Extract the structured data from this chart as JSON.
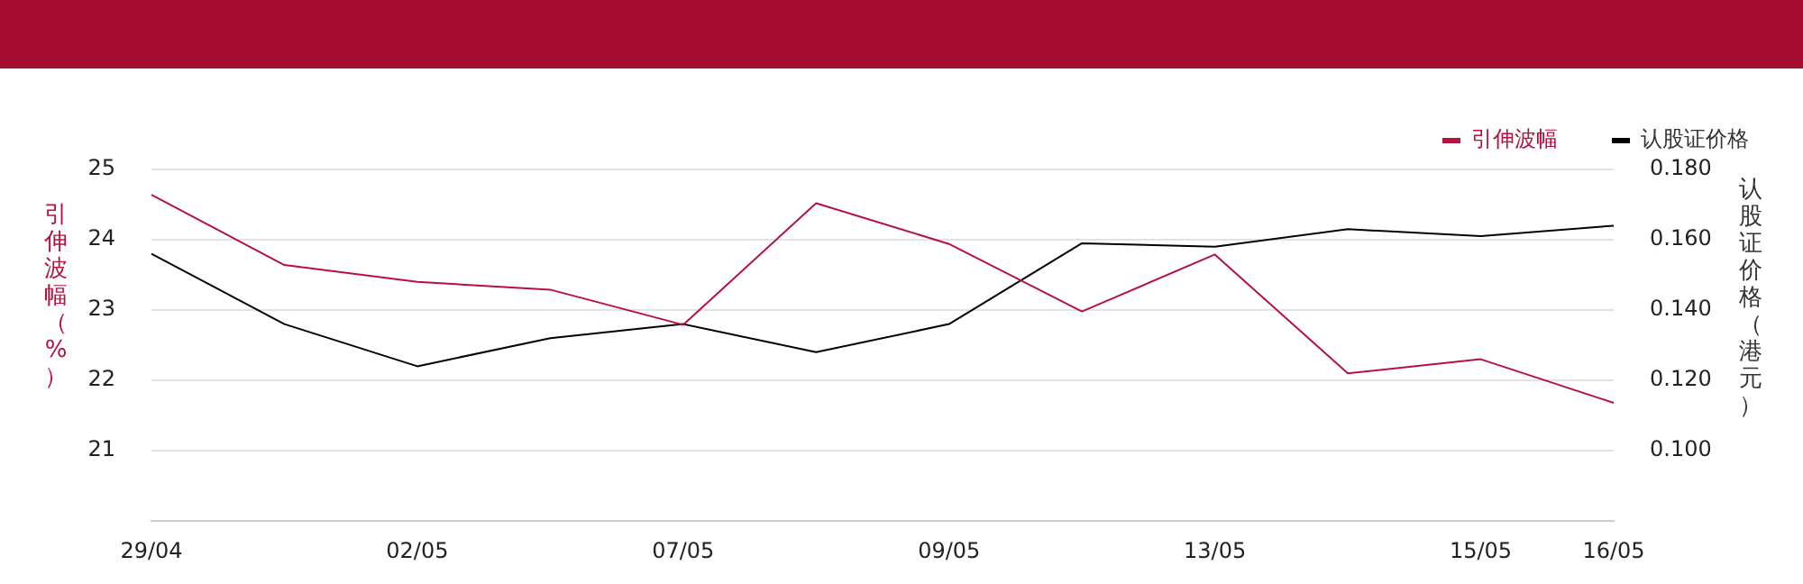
{
  "chart_data": {
    "type": "line",
    "ylabel": "引伸波幅（%）",
    "y2label": "认股证价格（港元）",
    "categories": [
      "29/04",
      null,
      "02/05",
      null,
      "07/05",
      null,
      "09/05",
      null,
      "13/05",
      null,
      "15/05",
      "16/05"
    ],
    "series": [
      {
        "name": "引伸波幅",
        "color": "#b5123e",
        "values": [
          24.64,
          23.64,
          23.4,
          23.29,
          22.79,
          24.52,
          23.94,
          22.98,
          23.79,
          22.1,
          22.3,
          21.68
        ]
      },
      {
        "name": "认股证价格",
        "color": "#000000",
        "axis": "y2",
        "values": [
          0.156,
          0.136,
          0.124,
          0.132,
          0.136,
          0.128,
          0.136,
          0.159,
          0.158,
          0.163,
          0.161,
          0.164
        ]
      }
    ],
    "ylim": [
      20,
      25
    ],
    "yticks": [
      21,
      22,
      23,
      24,
      25
    ],
    "y2lim": [
      0.08,
      0.18
    ],
    "y2ticks": [
      {
        "value": 0.1,
        "label": "0.100"
      },
      {
        "value": 0.12,
        "label": "0.120"
      },
      {
        "value": 0.14,
        "label": "0.140"
      },
      {
        "value": 0.16,
        "label": "0.160"
      },
      {
        "value": 0.18,
        "label": "0.180"
      }
    ],
    "grid": "y",
    "legend": "top right",
    "marker": "none",
    "line_style": "solid"
  }
}
